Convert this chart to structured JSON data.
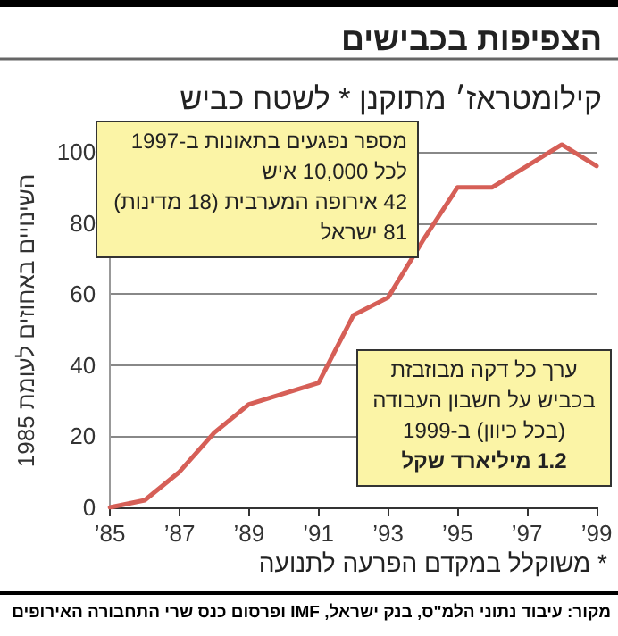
{
  "chart_data": {
    "type": "line",
    "title": "הצפיפות בכבישים",
    "subtitle": "קילומטראז׳ מתוקנן * לשטח כביש",
    "ylabel": "השינויים באחוזים לעומת 1985",
    "categories": [
      "’85",
      null,
      "’87",
      null,
      "’89",
      null,
      "’91",
      null,
      "’93",
      null,
      "’95",
      null,
      "’97",
      null,
      "’99"
    ],
    "series": [
      {
        "color": "#d65f57",
        "values": [
          0,
          2,
          10,
          21,
          29,
          32,
          35,
          54,
          59,
          75,
          90,
          90,
          96,
          102,
          96
        ]
      }
    ],
    "ylim": [
      0,
      105
    ],
    "yticks": [
      0,
      20,
      40,
      60,
      80,
      100
    ],
    "grid": "y",
    "marker": "none",
    "line_style": "solid",
    "annotations": [
      "מספר נפגעים בתאונות ב-1997\nלכל 10,000 איש\n42 אירופה המערבית (18 מדינות)\n81 ישראל",
      "ערך כל דקה מבוזבזת\nבכביש על חשבון העבודה\n(בכל כיוון) ב-1999\n1.2 מיליארד שקל",
      "* משוקלל במקדם הפרעה לתנועה",
      "מקור: עיבוד נתוני הלמ\"ס, בנק ישראל, IMF ופרסום כנס שרי התחבורה האירופים"
    ]
  }
}
